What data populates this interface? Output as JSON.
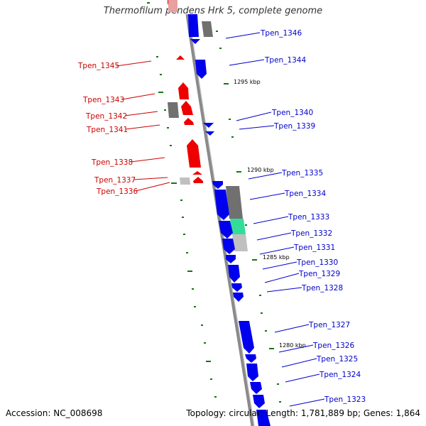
{
  "title": "Thermofilum pendens Hrk 5, complete genome",
  "accession": "Accession: NC_008698",
  "summary": "Topology: circular; Length: 1,781,889 bp; Genes: 1,864",
  "colors": {
    "forward": "#0000ee",
    "reverse": "#ee0000",
    "forward_label": "#0000cc",
    "reverse_label": "#cc0000",
    "rna": "#707070",
    "light_rna": "#c0c0c0",
    "highlight": "#33dd99",
    "tick": "#117711",
    "backbone": "#8a8a8a"
  },
  "scale_ticks": [
    "1295 kbp",
    "1290 kbp",
    "1285 kbp",
    "1280 kbp"
  ],
  "genes_forward": [
    "Tpen_1346",
    "Tpen_1344",
    "Tpen_1340",
    "Tpen_1339",
    "Tpen_1335",
    "Tpen_1334",
    "Tpen_1333",
    "Tpen_1332",
    "Tpen_1331",
    "Tpen_1330",
    "Tpen_1329",
    "Tpen_1328",
    "Tpen_1327",
    "Tpen_1326",
    "Tpen_1325",
    "Tpen_1324",
    "Tpen_1323"
  ],
  "genes_reverse": [
    "Tpen_1345",
    "Tpen_1343",
    "Tpen_1342",
    "Tpen_1341",
    "Tpen_1338",
    "Tpen_1337",
    "Tpen_1336"
  ]
}
